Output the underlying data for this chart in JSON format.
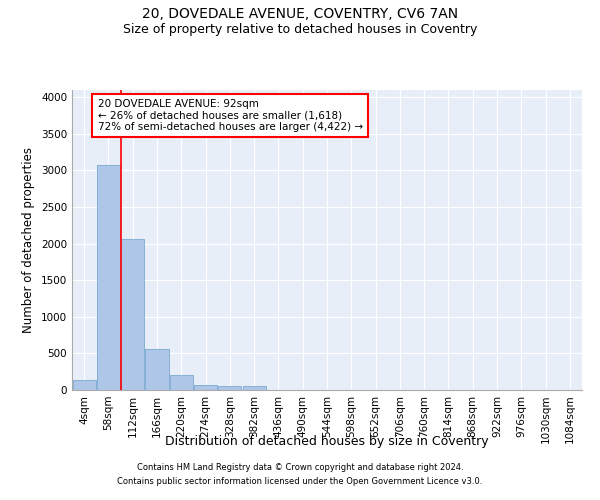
{
  "title_line1": "20, DOVEDALE AVENUE, COVENTRY, CV6 7AN",
  "title_line2": "Size of property relative to detached houses in Coventry",
  "xlabel": "Distribution of detached houses by size in Coventry",
  "ylabel": "Number of detached properties",
  "bar_categories": [
    "4sqm",
    "58sqm",
    "112sqm",
    "166sqm",
    "220sqm",
    "274sqm",
    "328sqm",
    "382sqm",
    "436sqm",
    "490sqm",
    "544sqm",
    "598sqm",
    "652sqm",
    "706sqm",
    "760sqm",
    "814sqm",
    "868sqm",
    "922sqm",
    "976sqm",
    "1030sqm",
    "1084sqm"
  ],
  "bar_values": [
    140,
    3070,
    2070,
    560,
    205,
    75,
    50,
    50,
    0,
    0,
    0,
    0,
    0,
    0,
    0,
    0,
    0,
    0,
    0,
    0,
    0
  ],
  "bar_color": "#aec6e8",
  "bar_edge_color": "#6aa0c9",
  "ylim": [
    0,
    4100
  ],
  "yticks": [
    0,
    500,
    1000,
    1500,
    2000,
    2500,
    3000,
    3500,
    4000
  ],
  "red_line_x": 1.5,
  "annotation_box_line1": "20 DOVEDALE AVENUE: 92sqm",
  "annotation_box_line2": "← 26% of detached houses are smaller (1,618)",
  "annotation_box_line3": "72% of semi-detached houses are larger (4,422) →",
  "footer_line1": "Contains HM Land Registry data © Crown copyright and database right 2024.",
  "footer_line2": "Contains public sector information licensed under the Open Government Licence v3.0.",
  "background_color": "#e8eef8",
  "grid_color": "#cccccc",
  "title_fontsize": 10,
  "subtitle_fontsize": 9,
  "tick_fontsize": 7.5,
  "ylabel_fontsize": 8.5,
  "xlabel_fontsize": 9,
  "annotation_fontsize": 7.5,
  "footer_fontsize": 6
}
